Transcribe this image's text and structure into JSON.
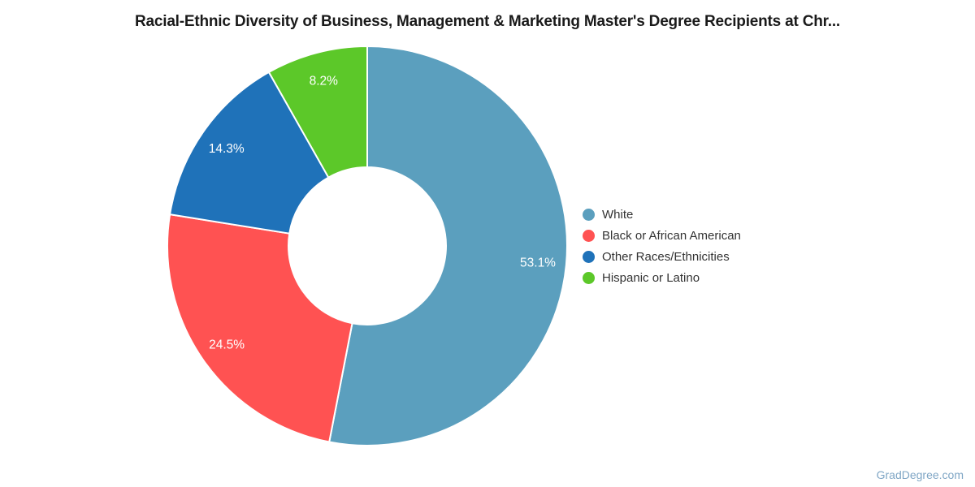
{
  "page": {
    "background": "#ffffff"
  },
  "header": {
    "title": "Racial-Ethnic Diversity of Business, Management & Marketing Master's Degree Recipients at Chr..."
  },
  "chart_data": {
    "type": "pie",
    "subtype": "donut",
    "title": "Racial-Ethnic Diversity of Business, Management & Marketing Master's Degree Recipients at Chr...",
    "inner_radius_ratio": 0.394,
    "start_angle_deg": 0,
    "direction": "clockwise",
    "legend_position": "right",
    "label_format": "percent",
    "series": [
      {
        "label": "White",
        "value": 53.1,
        "display": "53.1%",
        "color": "#5B9FBE"
      },
      {
        "label": "Black or African American",
        "value": 24.5,
        "display": "24.5%",
        "color": "#FF5252"
      },
      {
        "label": "Other Races/Ethnicities",
        "value": 14.3,
        "display": "14.3%",
        "color": "#1F72B9"
      },
      {
        "label": "Hispanic or Latino",
        "value": 8.2,
        "display": "8.2%",
        "color": "#5CC829"
      }
    ]
  },
  "watermark": {
    "text": "GradDegree.com",
    "color": "#7FA6C5"
  }
}
